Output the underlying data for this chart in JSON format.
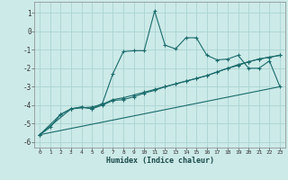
{
  "xlabel": "Humidex (Indice chaleur)",
  "background_color": "#cceae8",
  "grid_color": "#aad4d2",
  "line_color": "#1a6b6b",
  "xlim": [
    -0.5,
    23.5
  ],
  "ylim": [
    -6.3,
    1.6
  ],
  "yticks": [
    -6,
    -5,
    -4,
    -3,
    -2,
    -1,
    0,
    1
  ],
  "xticks": [
    0,
    1,
    2,
    3,
    4,
    5,
    6,
    7,
    8,
    9,
    10,
    11,
    12,
    13,
    14,
    15,
    16,
    17,
    18,
    19,
    20,
    21,
    22,
    23
  ],
  "series1_x": [
    0,
    1,
    2,
    3,
    4,
    5,
    6,
    7,
    8,
    9,
    10,
    11,
    12,
    13,
    14,
    15,
    16,
    17,
    18,
    19,
    20,
    21,
    22,
    23
  ],
  "series1_y": [
    -5.6,
    -5.2,
    -4.5,
    -4.2,
    -4.1,
    -4.2,
    -3.9,
    -2.3,
    -1.1,
    -1.05,
    -1.05,
    1.1,
    -0.75,
    -0.95,
    -0.35,
    -0.35,
    -1.3,
    -1.55,
    -1.5,
    -1.3,
    -2.0,
    -2.0,
    -1.6,
    -3.0
  ],
  "series2_x": [
    0,
    2,
    3,
    4,
    5,
    6,
    7,
    8,
    9,
    10,
    11,
    12,
    13,
    14,
    15,
    16,
    17,
    18,
    19,
    20,
    21,
    22,
    23
  ],
  "series2_y": [
    -5.6,
    -4.5,
    -4.2,
    -4.1,
    -4.2,
    -4.0,
    -3.75,
    -3.7,
    -3.55,
    -3.35,
    -3.2,
    -3.0,
    -2.85,
    -2.7,
    -2.55,
    -2.4,
    -2.2,
    -2.0,
    -1.8,
    -1.65,
    -1.5,
    -1.4,
    -1.3
  ],
  "series3_x": [
    0,
    3,
    5,
    6,
    7,
    8,
    9,
    10,
    11,
    12,
    13,
    14,
    15,
    16,
    17,
    18,
    19,
    20,
    21,
    22,
    23
  ],
  "series3_y": [
    -5.6,
    -4.2,
    -4.1,
    -3.95,
    -3.7,
    -3.6,
    -3.45,
    -3.3,
    -3.15,
    -3.0,
    -2.85,
    -2.7,
    -2.55,
    -2.4,
    -2.2,
    -2.0,
    -1.85,
    -1.65,
    -1.5,
    -1.4,
    -1.3
  ],
  "series4_x": [
    0,
    23
  ],
  "series4_y": [
    -5.6,
    -3.0
  ]
}
